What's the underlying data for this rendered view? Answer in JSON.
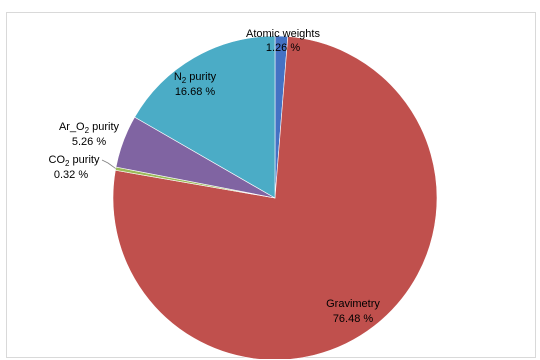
{
  "chart_data": {
    "type": "pie",
    "title": "",
    "start_angle_deg": 0,
    "direction": "clockwise",
    "legend": "none",
    "slices": [
      {
        "key": "atomic",
        "label": "Atomic weights",
        "sub": "",
        "value": 1.26,
        "value_text": "1.26 %",
        "color": "#4472c4"
      },
      {
        "key": "grav",
        "label": "Gravimetry",
        "sub": "",
        "value": 76.48,
        "value_text": "76.48 %",
        "color": "#c0504d"
      },
      {
        "key": "co2",
        "label": "CO",
        "sub": "2",
        "label_suffix": " purity",
        "value": 0.32,
        "value_text": "0.32 %",
        "color": "#9bbb59"
      },
      {
        "key": "aro2",
        "label": "Ar_O",
        "sub": "2",
        "label_suffix": " purity",
        "value": 5.26,
        "value_text": "5.26 %",
        "color": "#8064a2"
      },
      {
        "key": "n2",
        "label": "N",
        "sub": "2",
        "label_suffix": " purity",
        "value": 16.68,
        "value_text": "16.68 %",
        "color": "#4bacc6"
      }
    ]
  }
}
